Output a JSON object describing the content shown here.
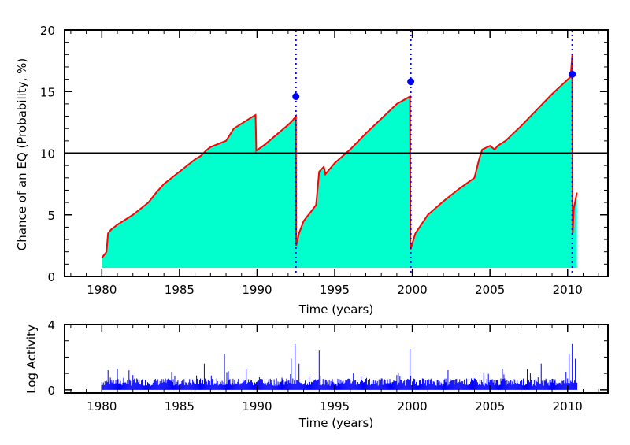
{
  "chart_data": [
    {
      "type": "area",
      "xlabel": "Time (years)",
      "ylabel": "Chance of an EQ (Probability, %)",
      "xlim": [
        1977.6,
        2012.6
      ],
      "ylim": [
        0,
        20
      ],
      "x_ticks": [
        1980,
        1985,
        1990,
        1995,
        2000,
        2005,
        2010
      ],
      "y_ticks": [
        0,
        5,
        10,
        15,
        20
      ],
      "grid": false,
      "fill_color": "#00ffcc",
      "line_color": "#ff0000",
      "fill_baseline": 0.7,
      "threshold": 10,
      "x": [
        1980.0,
        1980.3,
        1980.4,
        1980.6,
        1981.0,
        1982.0,
        1983.0,
        1983.5,
        1984.0,
        1985.0,
        1986.0,
        1986.4,
        1986.7,
        1987.0,
        1988.0,
        1988.5,
        1989.5,
        1989.9,
        1989.95,
        1990.5,
        1992.0,
        1992.25,
        1992.5,
        1992.52,
        1992.7,
        1993.0,
        1993.5,
        1993.8,
        1994.0,
        1994.3,
        1994.4,
        1995.0,
        1996.0,
        1997.0,
        1998.0,
        1999.0,
        1999.85,
        1999.88,
        2000.2,
        2001.0,
        2002.0,
        2003.0,
        2004.0,
        2004.3,
        2004.5,
        2005.0,
        2005.3,
        2005.5,
        2006.0,
        2007.0,
        2008.0,
        2009.0,
        2010.2,
        2010.3,
        2010.33,
        2010.4,
        2010.6
      ],
      "values": [
        1.5,
        2.0,
        3.5,
        3.8,
        4.2,
        5.0,
        6.0,
        6.8,
        7.5,
        8.5,
        9.5,
        9.8,
        10.2,
        10.5,
        11.0,
        12.0,
        12.8,
        13.1,
        10.2,
        10.7,
        12.3,
        12.6,
        13.0,
        2.5,
        3.5,
        4.5,
        5.3,
        5.8,
        8.5,
        8.9,
        8.3,
        9.2,
        10.3,
        11.6,
        12.8,
        14.0,
        14.6,
        2.2,
        3.5,
        5.0,
        6.1,
        7.1,
        8.0,
        9.5,
        10.3,
        10.6,
        10.3,
        10.6,
        11.0,
        12.2,
        13.5,
        14.8,
        16.2,
        18.0,
        3.5,
        5.5,
        6.8
      ],
      "markers": [
        {
          "x": 1992.5,
          "y": 14.6
        },
        {
          "x": 1999.9,
          "y": 15.8
        },
        {
          "x": 2010.3,
          "y": 16.4
        }
      ],
      "marker_color": "#0000ff"
    },
    {
      "type": "bar",
      "xlabel": "Time (years)",
      "ylabel": "Log Activity",
      "xlim": [
        1977.6,
        2012.6
      ],
      "ylim": [
        -0.2,
        4
      ],
      "x_ticks": [
        1980,
        1985,
        1990,
        1995,
        2000,
        2005,
        2010
      ],
      "y_ticks": [
        0,
        4
      ],
      "grid": false,
      "bar_color": "#0000ff",
      "x_start": 1980.0,
      "x_end": 2010.6,
      "baseline_level": 0.5,
      "peaks": [
        {
          "x": 1980.4,
          "y": 1.2
        },
        {
          "x": 1981.0,
          "y": 1.3
        },
        {
          "x": 1982.0,
          "y": 0.9
        },
        {
          "x": 1984.5,
          "y": 1.1
        },
        {
          "x": 1986.6,
          "y": 1.6
        },
        {
          "x": 1987.9,
          "y": 2.2
        },
        {
          "x": 1989.3,
          "y": 1.3
        },
        {
          "x": 1992.2,
          "y": 1.9
        },
        {
          "x": 1992.45,
          "y": 2.8
        },
        {
          "x": 1992.7,
          "y": 1.6
        },
        {
          "x": 1994.0,
          "y": 2.4
        },
        {
          "x": 1996.2,
          "y": 1.0
        },
        {
          "x": 1999.0,
          "y": 0.9
        },
        {
          "x": 1999.85,
          "y": 2.5
        },
        {
          "x": 2002.3,
          "y": 1.2
        },
        {
          "x": 2005.8,
          "y": 1.3
        },
        {
          "x": 2007.6,
          "y": 1.0
        },
        {
          "x": 2008.3,
          "y": 1.6
        },
        {
          "x": 2010.1,
          "y": 2.2
        },
        {
          "x": 2010.3,
          "y": 2.8
        },
        {
          "x": 2010.5,
          "y": 1.9
        }
      ]
    }
  ]
}
